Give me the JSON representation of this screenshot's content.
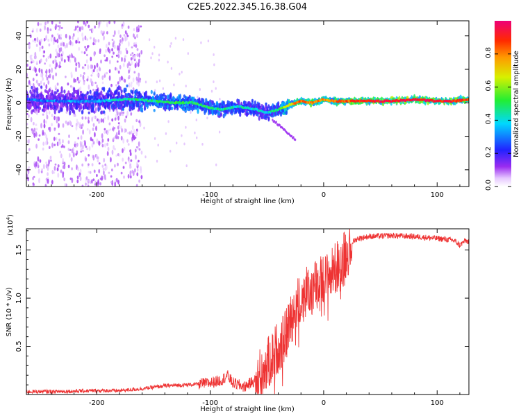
{
  "title": "C2E5.2022.345.16.38.G04",
  "chart_data": [
    {
      "type": "heatmap",
      "title": "C2E5.2022.345.16.38.G04",
      "xlabel": "Height of straight line (km)",
      "ylabel": "Frequency (Hz)",
      "xlim": [
        -262,
        128
      ],
      "ylim": [
        -50,
        49
      ],
      "xticks": [
        -200,
        -100,
        0,
        100
      ],
      "xtick_labels": [
        "-200",
        "-100",
        "0",
        "100"
      ],
      "yticks": [
        -40,
        -20,
        0,
        20,
        40
      ],
      "ytick_labels": [
        "-40",
        "-20",
        "0",
        "20",
        "40"
      ],
      "colorbar": {
        "label": "Normalized spectral amplitude",
        "range": [
          0,
          1
        ],
        "ticks": [
          0.0,
          0.2,
          0.4,
          0.6,
          0.8
        ],
        "tick_labels": [
          "0.0",
          "0.2",
          "0.4",
          "0.6",
          "0.8"
        ],
        "colormap": "rainbow"
      },
      "ridge": [
        {
          "x": -260,
          "f": 2,
          "amp": 0.28
        },
        {
          "x": -240,
          "f": 1,
          "amp": 0.3
        },
        {
          "x": -220,
          "f": 1,
          "amp": 0.32
        },
        {
          "x": -200,
          "f": 1,
          "amp": 0.36
        },
        {
          "x": -180,
          "f": 2,
          "amp": 0.4
        },
        {
          "x": -165,
          "f": 2,
          "amp": 0.45
        },
        {
          "x": -150,
          "f": 1,
          "amp": 0.48
        },
        {
          "x": -130,
          "f": 0,
          "amp": 0.5
        },
        {
          "x": -115,
          "f": 0,
          "amp": 0.5
        },
        {
          "x": -100,
          "f": -3,
          "amp": 0.48
        },
        {
          "x": -90,
          "f": -4,
          "amp": 0.45
        },
        {
          "x": -75,
          "f": -2,
          "amp": 0.42
        },
        {
          "x": -60,
          "f": -4,
          "amp": 0.4
        },
        {
          "x": -50,
          "f": -6,
          "amp": 0.38
        },
        {
          "x": -40,
          "f": -4,
          "amp": 0.5
        },
        {
          "x": -30,
          "f": -1,
          "amp": 0.7
        },
        {
          "x": -20,
          "f": 1,
          "amp": 0.85
        },
        {
          "x": -10,
          "f": 0,
          "amp": 0.8
        },
        {
          "x": 0,
          "f": 2,
          "amp": 0.75
        },
        {
          "x": 10,
          "f": 1,
          "amp": 0.8
        },
        {
          "x": 20,
          "f": 1,
          "amp": 0.85
        },
        {
          "x": 40,
          "f": 1,
          "amp": 0.92
        },
        {
          "x": 60,
          "f": 1,
          "amp": 0.95
        },
        {
          "x": 80,
          "f": 2,
          "amp": 0.95
        },
        {
          "x": 100,
          "f": 1,
          "amp": 0.92
        },
        {
          "x": 115,
          "f": 1,
          "amp": 0.9
        },
        {
          "x": 128,
          "f": 2,
          "amp": 0.85
        }
      ]
    },
    {
      "type": "line",
      "xlabel": "Height of straight line (km)",
      "ylabel": "SNR (10 * v/v)",
      "ylabel_multiplier": "(x10",
      "ylabel_multiplier_exp": "4",
      "ylabel_multiplier_close": ")",
      "xlim": [
        -262,
        128
      ],
      "ylim": [
        0,
        1.72
      ],
      "xticks": [
        -200,
        -100,
        0,
        100
      ],
      "xtick_labels": [
        "-200",
        "-100",
        "0",
        "100"
      ],
      "yticks": [
        0.5,
        1.0,
        1.5
      ],
      "ytick_labels": [
        "0.5",
        "1.0",
        "1.5"
      ],
      "color": "#ee3333",
      "series": [
        {
          "x": [
            -262,
            -240,
            -220,
            -200,
            -180,
            -160,
            -140,
            -120,
            -100,
            -90,
            -85,
            -80,
            -70,
            -60,
            -50,
            -45,
            -40,
            -35,
            -30,
            -25,
            -20,
            -15,
            -10,
            -5,
            0,
            5,
            10,
            15,
            20,
            25,
            30,
            40,
            60,
            80,
            100,
            115,
            120,
            125,
            128
          ],
          "y": [
            0.03,
            0.03,
            0.035,
            0.04,
            0.04,
            0.06,
            0.09,
            0.1,
            0.12,
            0.15,
            0.2,
            0.12,
            0.08,
            0.15,
            0.3,
            0.4,
            0.5,
            0.55,
            0.75,
            0.9,
            1.0,
            1.05,
            1.1,
            1.15,
            1.18,
            1.22,
            1.3,
            1.38,
            1.48,
            1.58,
            1.62,
            1.64,
            1.65,
            1.64,
            1.62,
            1.6,
            1.55,
            1.6,
            1.58
          ]
        }
      ]
    }
  ]
}
